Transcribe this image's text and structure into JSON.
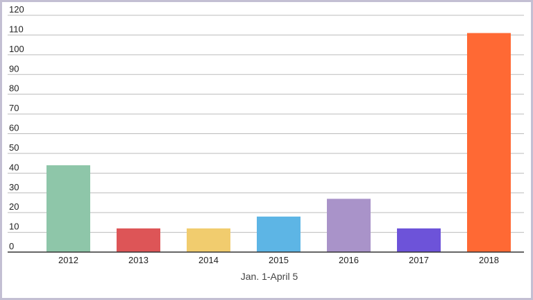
{
  "chart_data": {
    "type": "bar",
    "title": "",
    "xlabel": "Jan. 1-April 5",
    "ylabel": "",
    "categories": [
      "2012",
      "2013",
      "2014",
      "2015",
      "2016",
      "2017",
      "2018"
    ],
    "values": [
      44,
      12,
      12,
      18,
      27,
      12,
      111
    ],
    "colors": [
      "#8ec6a9",
      "#dd5557",
      "#f1cc6e",
      "#5db5e5",
      "#a993c9",
      "#6d53d9",
      "#ff6934"
    ],
    "ylim": [
      0,
      120
    ],
    "yticks": [
      0,
      10,
      20,
      30,
      40,
      50,
      60,
      70,
      80,
      90,
      100,
      110,
      120
    ],
    "grid": true,
    "legend": "none"
  }
}
